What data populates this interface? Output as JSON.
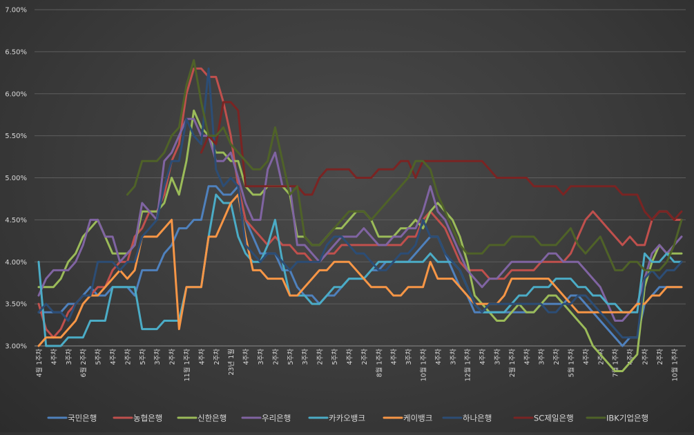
{
  "chart_data": {
    "type": "line",
    "title": "",
    "ylim": [
      0.03,
      0.07
    ],
    "y_ticks": [
      "3.00%",
      "3.50%",
      "4.00%",
      "4.50%",
      "5.00%",
      "5.50%",
      "6.00%",
      "6.50%",
      "7.00%"
    ],
    "x_ticks": [
      {
        "i": 0,
        "label": "4월 1주차"
      },
      {
        "i": 2,
        "label": "4주차"
      },
      {
        "i": 4,
        "label": "3주차"
      },
      {
        "i": 6,
        "label": "6월 2주차"
      },
      {
        "i": 8,
        "label": "5주차"
      },
      {
        "i": 10,
        "label": "4주차"
      },
      {
        "i": 12,
        "label": "2주차"
      },
      {
        "i": 14,
        "label": "5주차"
      },
      {
        "i": 16,
        "label": "3주차"
      },
      {
        "i": 18,
        "label": "2주차"
      },
      {
        "i": 20,
        "label": "11월 1주차"
      },
      {
        "i": 22,
        "label": "4주차"
      },
      {
        "i": 24,
        "label": "2주차"
      },
      {
        "i": 26,
        "label": "23년 1월"
      },
      {
        "i": 28,
        "label": "4주차"
      },
      {
        "i": 30,
        "label": "3주차"
      },
      {
        "i": 32,
        "label": "2주차"
      },
      {
        "i": 34,
        "label": "5주차"
      },
      {
        "i": 36,
        "label": "3주차"
      },
      {
        "i": 38,
        "label": "2주차"
      },
      {
        "i": 40,
        "label": "5주차"
      },
      {
        "i": 42,
        "label": "4주차"
      },
      {
        "i": 44,
        "label": "2주차"
      },
      {
        "i": 46,
        "label": "8월 1주차"
      },
      {
        "i": 48,
        "label": "4주차"
      },
      {
        "i": 50,
        "label": "3주차"
      },
      {
        "i": 52,
        "label": "10월 1주차"
      },
      {
        "i": 54,
        "label": "4주차"
      },
      {
        "i": 56,
        "label": "3주차"
      },
      {
        "i": 58,
        "label": "12월 1주차"
      },
      {
        "i": 60,
        "label": "4주차"
      },
      {
        "i": 62,
        "label": "3주차"
      },
      {
        "i": 64,
        "label": "2월 1주차"
      },
      {
        "i": 66,
        "label": "4주차"
      },
      {
        "i": 68,
        "label": "3주차"
      },
      {
        "i": 70,
        "label": "2주차"
      },
      {
        "i": 72,
        "label": "5월 1주차"
      },
      {
        "i": 74,
        "label": "4주차"
      },
      {
        "i": 76,
        "label": "2주차"
      },
      {
        "i": 78,
        "label": "7월 1주차"
      },
      {
        "i": 80,
        "label": "4주차"
      },
      {
        "i": 82,
        "label": "2주차"
      },
      {
        "i": 84,
        "label": "2주차"
      },
      {
        "i": 86,
        "label": "10월 1주차"
      }
    ],
    "series": [
      {
        "name": "국민은행",
        "color": "#4f81bd",
        "values": [
          0.034,
          0.034,
          0.034,
          0.034,
          0.035,
          0.035,
          0.036,
          0.037,
          0.036,
          0.036,
          0.037,
          0.037,
          0.037,
          0.036,
          0.039,
          0.039,
          0.039,
          0.041,
          0.042,
          0.044,
          0.044,
          0.045,
          0.045,
          0.049,
          0.049,
          0.048,
          0.048,
          0.049,
          0.045,
          0.043,
          0.041,
          0.041,
          0.041,
          0.039,
          0.039,
          0.037,
          0.036,
          0.036,
          0.035,
          0.036,
          0.036,
          0.037,
          0.038,
          0.038,
          0.038,
          0.039,
          0.039,
          0.04,
          0.04,
          0.04,
          0.04,
          0.041,
          0.042,
          0.043,
          0.043,
          0.041,
          0.039,
          0.037,
          0.036,
          0.034,
          0.034,
          0.034,
          0.034,
          0.034,
          0.034,
          0.034,
          0.034,
          0.034,
          0.035,
          0.035,
          0.035,
          0.035,
          0.036,
          0.036,
          0.035,
          0.034,
          0.033,
          0.032,
          0.031,
          0.03,
          0.031,
          0.031,
          0.035,
          0.036,
          0.037,
          0.037,
          0.037,
          0.037
        ]
      },
      {
        "name": "농협은행",
        "color": "#c0504d",
        "values": [
          0.035,
          0.032,
          0.031,
          0.032,
          0.034,
          0.035,
          0.036,
          0.036,
          0.037,
          0.037,
          0.039,
          0.04,
          0.04,
          0.043,
          0.044,
          0.046,
          0.046,
          0.048,
          0.052,
          0.054,
          0.06,
          0.063,
          0.063,
          0.062,
          0.062,
          0.059,
          0.055,
          0.049,
          0.045,
          0.044,
          0.043,
          0.042,
          0.043,
          0.042,
          0.042,
          0.041,
          0.041,
          0.04,
          0.04,
          0.041,
          0.041,
          0.042,
          0.042,
          0.042,
          0.042,
          0.042,
          0.042,
          0.042,
          0.042,
          0.042,
          0.043,
          0.043,
          0.045,
          0.046,
          0.045,
          0.044,
          0.042,
          0.04,
          0.039,
          0.039,
          0.039,
          0.038,
          0.038,
          0.038,
          0.039,
          0.039,
          0.039,
          0.039,
          0.04,
          0.04,
          0.04,
          0.04,
          0.041,
          0.043,
          0.045,
          0.046,
          0.045,
          0.044,
          0.043,
          0.042,
          0.043,
          0.042,
          0.042,
          0.045,
          0.046,
          0.046,
          0.045,
          0.045
        ]
      },
      {
        "name": "신한은행",
        "color": "#9bbb59",
        "values": [
          0.037,
          0.037,
          0.037,
          0.038,
          0.04,
          0.041,
          0.043,
          0.044,
          0.045,
          0.043,
          0.041,
          0.041,
          0.041,
          0.042,
          0.046,
          0.046,
          0.046,
          0.047,
          0.05,
          0.048,
          0.052,
          0.058,
          0.056,
          0.055,
          0.053,
          0.053,
          0.052,
          0.052,
          0.049,
          0.048,
          0.048,
          0.049,
          0.049,
          0.049,
          0.048,
          0.043,
          0.043,
          0.042,
          0.042,
          0.043,
          0.044,
          0.044,
          0.045,
          0.046,
          0.046,
          0.045,
          0.043,
          0.043,
          0.043,
          0.044,
          0.044,
          0.045,
          0.044,
          0.046,
          0.047,
          0.046,
          0.045,
          0.043,
          0.04,
          0.036,
          0.035,
          0.034,
          0.033,
          0.033,
          0.034,
          0.035,
          0.034,
          0.034,
          0.035,
          0.036,
          0.036,
          0.035,
          0.034,
          0.033,
          0.032,
          0.03,
          0.029,
          0.028,
          0.027,
          0.027,
          0.028,
          0.029,
          0.037,
          0.04,
          0.042,
          0.041,
          0.041,
          0.041
        ]
      },
      {
        "name": "우리은행",
        "color": "#8064a2",
        "values": [
          0.036,
          0.038,
          0.039,
          0.039,
          0.039,
          0.04,
          0.042,
          0.045,
          0.045,
          0.043,
          0.043,
          0.04,
          0.041,
          0.042,
          0.047,
          0.046,
          0.045,
          0.052,
          0.053,
          0.055,
          0.057,
          0.057,
          0.055,
          0.055,
          0.052,
          0.052,
          0.053,
          0.05,
          0.047,
          0.045,
          0.045,
          0.051,
          0.053,
          0.049,
          0.049,
          0.042,
          0.042,
          0.041,
          0.04,
          0.041,
          0.042,
          0.043,
          0.043,
          0.043,
          0.044,
          0.043,
          0.042,
          0.042,
          0.043,
          0.043,
          0.044,
          0.044,
          0.046,
          0.049,
          0.046,
          0.045,
          0.043,
          0.041,
          0.039,
          0.038,
          0.037,
          0.038,
          0.038,
          0.039,
          0.04,
          0.04,
          0.04,
          0.04,
          0.04,
          0.041,
          0.041,
          0.04,
          0.04,
          0.04,
          0.039,
          0.038,
          0.037,
          0.035,
          0.033,
          0.033,
          0.034,
          0.035,
          0.038,
          0.041,
          0.042,
          0.041,
          0.042,
          0.043
        ]
      },
      {
        "name": "카카오뱅크",
        "color": "#4bacc6",
        "values": [
          0.04,
          0.03,
          0.03,
          0.03,
          0.031,
          0.031,
          0.031,
          0.033,
          0.033,
          0.033,
          0.037,
          0.037,
          0.037,
          0.037,
          0.032,
          0.032,
          0.032,
          0.033,
          0.033,
          0.033,
          0.037,
          0.037,
          0.037,
          0.043,
          0.048,
          0.047,
          0.047,
          0.043,
          0.041,
          0.04,
          0.04,
          0.042,
          0.045,
          0.04,
          0.036,
          0.036,
          0.036,
          0.035,
          0.035,
          0.036,
          0.037,
          0.037,
          0.038,
          0.038,
          0.038,
          0.039,
          0.04,
          0.04,
          0.04,
          0.04,
          0.04,
          0.04,
          0.04,
          0.041,
          0.04,
          0.04,
          0.04,
          0.039,
          0.037,
          0.035,
          0.034,
          0.034,
          0.034,
          0.034,
          0.035,
          0.036,
          0.036,
          0.037,
          0.037,
          0.037,
          0.038,
          0.038,
          0.038,
          0.037,
          0.037,
          0.036,
          0.036,
          0.035,
          0.035,
          0.034,
          0.034,
          0.034,
          0.041,
          0.04,
          0.04,
          0.041,
          0.04,
          0.04
        ]
      },
      {
        "name": "케이뱅크",
        "color": "#f79646",
        "values": [
          0.03,
          0.031,
          0.031,
          0.031,
          0.032,
          0.033,
          0.035,
          0.036,
          0.036,
          0.037,
          0.038,
          0.039,
          0.038,
          0.039,
          0.043,
          0.043,
          0.043,
          0.044,
          0.045,
          0.032,
          0.037,
          0.037,
          0.037,
          0.043,
          0.043,
          0.045,
          0.047,
          0.048,
          0.043,
          0.039,
          0.039,
          0.038,
          0.038,
          0.038,
          0.036,
          0.036,
          0.037,
          0.038,
          0.039,
          0.039,
          0.04,
          0.04,
          0.04,
          0.039,
          0.038,
          0.037,
          0.037,
          0.037,
          0.036,
          0.036,
          0.037,
          0.037,
          0.037,
          0.04,
          0.038,
          0.038,
          0.038,
          0.037,
          0.036,
          0.035,
          0.035,
          0.035,
          0.035,
          0.036,
          0.038,
          0.038,
          0.038,
          0.038,
          0.038,
          0.038,
          0.037,
          0.036,
          0.035,
          0.034,
          0.034,
          0.034,
          0.034,
          0.034,
          0.034,
          0.034,
          0.034,
          0.035,
          0.035,
          0.036,
          0.036,
          0.037,
          0.037,
          0.037
        ]
      },
      {
        "name": "하나은행",
        "color": "#2c4d75",
        "values": [
          0.034,
          0.035,
          0.034,
          0.034,
          0.033,
          0.035,
          0.036,
          0.036,
          0.04,
          0.04,
          0.04,
          0.039,
          0.04,
          0.04,
          0.043,
          0.044,
          0.045,
          0.049,
          0.052,
          0.052,
          0.057,
          0.055,
          0.054,
          0.063,
          0.051,
          0.049,
          0.05,
          0.049,
          0.042,
          0.041,
          0.04,
          0.041,
          0.041,
          0.04,
          0.039,
          0.04,
          0.04,
          0.04,
          0.04,
          0.042,
          0.043,
          0.043,
          0.042,
          0.041,
          0.041,
          0.04,
          0.039,
          0.039,
          0.04,
          0.041,
          0.041,
          0.042,
          0.045,
          0.043,
          0.043,
          0.041,
          0.04,
          0.039,
          0.037,
          0.035,
          0.034,
          0.035,
          0.035,
          0.035,
          0.035,
          0.035,
          0.035,
          0.035,
          0.035,
          0.034,
          0.034,
          0.035,
          0.035,
          0.036,
          0.036,
          0.035,
          0.034,
          0.033,
          0.032,
          0.031,
          0.031,
          0.031,
          0.038,
          0.039,
          0.038,
          0.039,
          0.039,
          0.04
        ]
      },
      {
        "name": "SC제일은행",
        "color": "#7a2423",
        "values": [
          null,
          null,
          null,
          null,
          null,
          null,
          null,
          null,
          null,
          null,
          null,
          null,
          null,
          null,
          null,
          null,
          null,
          null,
          null,
          null,
          null,
          null,
          0.053,
          0.055,
          0.054,
          0.059,
          0.059,
          0.058,
          0.049,
          0.049,
          0.049,
          0.049,
          0.049,
          0.049,
          0.049,
          0.049,
          0.048,
          0.048,
          0.05,
          0.051,
          0.051,
          0.051,
          0.051,
          0.05,
          0.05,
          0.05,
          0.051,
          0.051,
          0.051,
          0.052,
          0.052,
          0.05,
          0.052,
          0.052,
          0.052,
          0.052,
          0.052,
          0.052,
          0.052,
          0.052,
          0.052,
          0.051,
          0.05,
          0.05,
          0.05,
          0.05,
          0.05,
          0.049,
          0.049,
          0.049,
          0.049,
          0.048,
          0.049,
          0.049,
          0.049,
          0.049,
          0.049,
          0.049,
          0.049,
          0.048,
          0.048,
          0.048,
          0.046,
          0.045,
          0.046,
          0.046,
          0.045,
          0.046
        ]
      },
      {
        "name": "IBK기업은행",
        "color": "#4f6228",
        "values": [
          null,
          null,
          null,
          null,
          null,
          null,
          null,
          null,
          null,
          null,
          null,
          null,
          0.048,
          0.049,
          0.052,
          0.052,
          0.052,
          0.053,
          0.055,
          0.056,
          0.061,
          0.064,
          0.059,
          0.055,
          0.055,
          0.056,
          0.054,
          0.053,
          0.052,
          0.051,
          0.051,
          0.052,
          0.056,
          0.052,
          0.048,
          0.049,
          0.043,
          0.042,
          0.042,
          0.043,
          0.044,
          0.045,
          0.046,
          0.046,
          0.046,
          0.045,
          0.046,
          0.047,
          0.048,
          0.049,
          0.05,
          0.052,
          0.052,
          0.051,
          0.048,
          0.046,
          0.044,
          0.042,
          0.041,
          0.041,
          0.041,
          0.042,
          0.042,
          0.042,
          0.043,
          0.043,
          0.043,
          0.043,
          0.042,
          0.042,
          0.042,
          0.043,
          0.044,
          0.042,
          0.041,
          0.042,
          0.043,
          0.041,
          0.039,
          0.039,
          0.04,
          0.04,
          0.039,
          0.039,
          0.039,
          0.04,
          0.042,
          0.045
        ]
      }
    ]
  }
}
